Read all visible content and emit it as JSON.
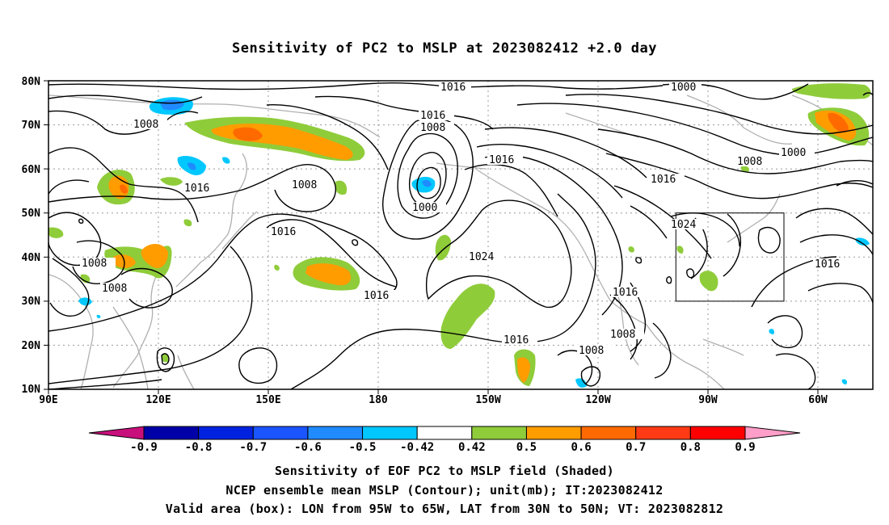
{
  "title": "Sensitivity of PC2 to MSLP at 2023082412 +2.0 day",
  "lat_ticks": [
    "80N",
    "70N",
    "60N",
    "50N",
    "40N",
    "30N",
    "20N",
    "10N"
  ],
  "lon_ticks": [
    "90E",
    "120E",
    "150E",
    "180",
    "150W",
    "120W",
    "90W",
    "60W"
  ],
  "contour_labels": [
    {
      "text": "1016",
      "id": "c1"
    },
    {
      "text": "1000",
      "id": "c2"
    },
    {
      "text": "1008",
      "id": "c3"
    },
    {
      "text": "1016",
      "id": "c4"
    },
    {
      "text": "1008",
      "id": "c5"
    },
    {
      "text": "1016",
      "id": "c6"
    },
    {
      "text": "1008",
      "id": "c7"
    },
    {
      "text": "1000",
      "id": "c8"
    },
    {
      "text": "1008",
      "id": "c9"
    },
    {
      "text": "1016",
      "id": "c10"
    },
    {
      "text": "1016",
      "id": "c11"
    },
    {
      "text": "1008",
      "id": "c12"
    },
    {
      "text": "1016",
      "id": "c13"
    },
    {
      "text": "1000",
      "id": "c14"
    },
    {
      "text": "1024",
      "id": "c15"
    },
    {
      "text": "1024",
      "id": "c16"
    },
    {
      "text": "1016",
      "id": "c17"
    },
    {
      "text": "1008",
      "id": "c18"
    },
    {
      "text": "1016",
      "id": "c19"
    },
    {
      "text": "1008",
      "id": "c20"
    },
    {
      "text": "1016",
      "id": "c21"
    },
    {
      "text": "1016",
      "id": "c22"
    },
    {
      "text": "1008",
      "id": "c23"
    }
  ],
  "colorbar": {
    "labels": [
      "-0.9",
      "-0.8",
      "-0.7",
      "-0.6",
      "-0.5",
      "-0.42",
      "0.42",
      "0.5",
      "0.6",
      "0.7",
      "0.8",
      "0.9"
    ],
    "colors": [
      "#0000a8",
      "#0022e0",
      "#1a55ff",
      "#1f8bff",
      "#00c8ff",
      "#ffffff",
      "#8fcc3a",
      "#ff9c00",
      "#ff6a00",
      "#ff3a14",
      "#ff0000"
    ],
    "low_end_color": "#c8107c",
    "high_end_color": "#ff9ec8"
  },
  "valid_box": {
    "lon_min": "95W",
    "lon_max": "65W",
    "lat_min": "30N",
    "lat_max": "50N"
  },
  "captions": [
    "Sensitivity of EOF PC2 to MSLP field (Shaded)",
    "NCEP ensemble mean MSLP (Contour); unit(mb); IT:2023082412",
    "Valid area (box): LON from 95W to 65W, LAT from 30N to 50N; VT: 2023082812"
  ]
}
